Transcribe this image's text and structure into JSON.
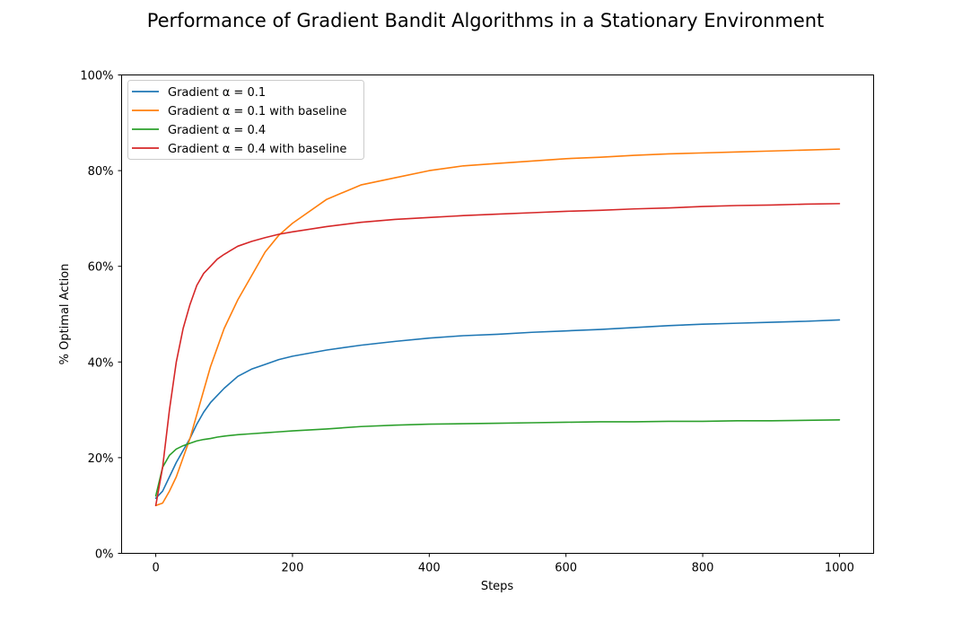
{
  "chart_data": {
    "type": "line",
    "title": "Performance of Gradient Bandit Algorithms in a Stationary Environment",
    "xlabel": "Steps",
    "ylabel": "% Optimal Action",
    "xlim": [
      -50,
      1050
    ],
    "ylim": [
      0,
      1
    ],
    "x_ticks": [
      0,
      200,
      400,
      600,
      800,
      1000
    ],
    "x_tick_labels": [
      "0",
      "200",
      "400",
      "600",
      "800",
      "1000"
    ],
    "y_ticks": [
      0,
      0.2,
      0.4,
      0.6,
      0.8,
      1.0
    ],
    "y_tick_labels": [
      "0%",
      "20%",
      "40%",
      "60%",
      "80%",
      "100%"
    ],
    "grid": false,
    "legend_position": "top-left",
    "x": [
      0,
      10,
      20,
      30,
      40,
      50,
      60,
      70,
      80,
      90,
      100,
      120,
      140,
      160,
      180,
      200,
      250,
      300,
      350,
      400,
      450,
      500,
      550,
      600,
      650,
      700,
      750,
      800,
      850,
      900,
      950,
      1000
    ],
    "series": [
      {
        "name": "Gradient α = 0.1",
        "color": "#1f77b4",
        "values": [
          0.115,
          0.13,
          0.16,
          0.19,
          0.215,
          0.24,
          0.27,
          0.295,
          0.315,
          0.33,
          0.345,
          0.37,
          0.385,
          0.395,
          0.405,
          0.412,
          0.425,
          0.435,
          0.443,
          0.45,
          0.455,
          0.458,
          0.462,
          0.465,
          0.468,
          0.472,
          0.476,
          0.479,
          0.481,
          0.483,
          0.485,
          0.488
        ]
      },
      {
        "name": "Gradient α = 0.1 with baseline",
        "color": "#ff7f0e",
        "values": [
          0.1,
          0.105,
          0.13,
          0.16,
          0.2,
          0.24,
          0.29,
          0.34,
          0.39,
          0.43,
          0.47,
          0.53,
          0.58,
          0.63,
          0.665,
          0.69,
          0.74,
          0.77,
          0.785,
          0.8,
          0.81,
          0.815,
          0.82,
          0.825,
          0.828,
          0.832,
          0.835,
          0.837,
          0.839,
          0.841,
          0.843,
          0.845
        ]
      },
      {
        "name": "Gradient α = 0.4",
        "color": "#2ca02c",
        "values": [
          0.12,
          0.18,
          0.205,
          0.218,
          0.225,
          0.23,
          0.235,
          0.238,
          0.24,
          0.243,
          0.245,
          0.248,
          0.25,
          0.252,
          0.254,
          0.256,
          0.26,
          0.265,
          0.268,
          0.27,
          0.271,
          0.272,
          0.273,
          0.274,
          0.275,
          0.275,
          0.276,
          0.276,
          0.277,
          0.277,
          0.278,
          0.279
        ]
      },
      {
        "name": "Gradient α = 0.4 with baseline",
        "color": "#d62728",
        "values": [
          0.1,
          0.18,
          0.3,
          0.4,
          0.47,
          0.52,
          0.56,
          0.585,
          0.6,
          0.615,
          0.625,
          0.642,
          0.652,
          0.66,
          0.667,
          0.672,
          0.683,
          0.692,
          0.698,
          0.702,
          0.706,
          0.709,
          0.712,
          0.715,
          0.717,
          0.72,
          0.722,
          0.725,
          0.727,
          0.728,
          0.73,
          0.731
        ]
      }
    ]
  }
}
